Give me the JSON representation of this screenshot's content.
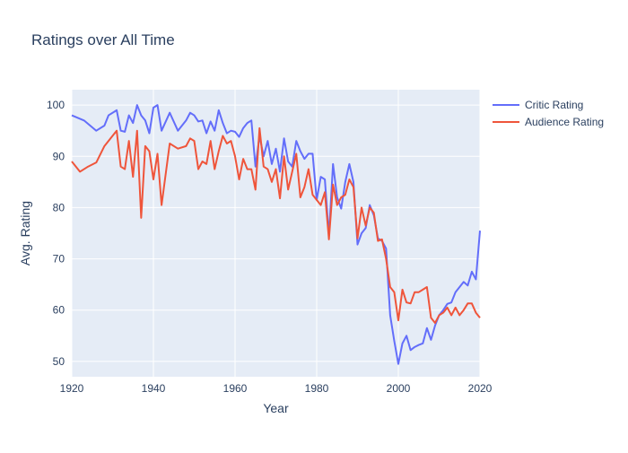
{
  "chart_data": {
    "type": "line",
    "title": "Ratings over All Time",
    "xlabel": "Year",
    "ylabel": "Avg. Rating",
    "xlim": [
      1920,
      2020
    ],
    "ylim": [
      47,
      103
    ],
    "x_ticks": [
      1920,
      1940,
      1960,
      1980,
      2000,
      2020
    ],
    "y_ticks": [
      50,
      60,
      70,
      80,
      90,
      100
    ],
    "grid": true,
    "legend_placement": "top-right",
    "colors": {
      "plot_bg": "#e5ecf6",
      "grid": "#ffffff",
      "text": "#2a3f5f"
    },
    "series": [
      {
        "name": "Critic Rating",
        "color": "#636efa",
        "points": [
          [
            1920,
            98.0
          ],
          [
            1923,
            97.0
          ],
          [
            1926,
            95.0
          ],
          [
            1928,
            96.0
          ],
          [
            1929,
            98.0
          ],
          [
            1931,
            99.0
          ],
          [
            1932,
            95.0
          ],
          [
            1933,
            94.8
          ],
          [
            1934,
            98.0
          ],
          [
            1935,
            96.5
          ],
          [
            1936,
            100.0
          ],
          [
            1937,
            98.0
          ],
          [
            1938,
            97.0
          ],
          [
            1939,
            94.5
          ],
          [
            1940,
            99.5
          ],
          [
            1941,
            100.0
          ],
          [
            1942,
            95.0
          ],
          [
            1944,
            98.5
          ],
          [
            1946,
            95.0
          ],
          [
            1948,
            97.0
          ],
          [
            1949,
            98.5
          ],
          [
            1950,
            98.0
          ],
          [
            1951,
            96.8
          ],
          [
            1952,
            97.0
          ],
          [
            1953,
            94.5
          ],
          [
            1954,
            96.8
          ],
          [
            1955,
            95.0
          ],
          [
            1956,
            99.0
          ],
          [
            1957,
            96.5
          ],
          [
            1958,
            94.5
          ],
          [
            1959,
            95.0
          ],
          [
            1960,
            94.8
          ],
          [
            1961,
            93.8
          ],
          [
            1962,
            95.5
          ],
          [
            1963,
            96.5
          ],
          [
            1964,
            97.0
          ],
          [
            1965,
            88.0
          ],
          [
            1966,
            94.0
          ],
          [
            1967,
            90.0
          ],
          [
            1968,
            93.0
          ],
          [
            1969,
            88.5
          ],
          [
            1970,
            91.5
          ],
          [
            1971,
            87.0
          ],
          [
            1972,
            93.5
          ],
          [
            1973,
            89.0
          ],
          [
            1974,
            88.0
          ],
          [
            1975,
            93.0
          ],
          [
            1976,
            91.0
          ],
          [
            1977,
            89.5
          ],
          [
            1978,
            90.5
          ],
          [
            1979,
            90.5
          ],
          [
            1980,
            81.5
          ],
          [
            1981,
            86.0
          ],
          [
            1982,
            85.5
          ],
          [
            1983,
            74.5
          ],
          [
            1984,
            88.5
          ],
          [
            1985,
            82.0
          ],
          [
            1986,
            79.8
          ],
          [
            1987,
            85.0
          ],
          [
            1988,
            88.5
          ],
          [
            1989,
            85.0
          ],
          [
            1990,
            72.8
          ],
          [
            1991,
            75.0
          ],
          [
            1992,
            76.0
          ],
          [
            1993,
            80.5
          ],
          [
            1994,
            78.5
          ],
          [
            1995,
            74.0
          ],
          [
            1996,
            73.5
          ],
          [
            1997,
            72.0
          ],
          [
            1998,
            59.0
          ],
          [
            1999,
            54.0
          ],
          [
            2000,
            49.5
          ],
          [
            2001,
            53.5
          ],
          [
            2002,
            55.0
          ],
          [
            2003,
            52.2
          ],
          [
            2004,
            52.8
          ],
          [
            2005,
            53.2
          ],
          [
            2006,
            53.5
          ],
          [
            2007,
            56.5
          ],
          [
            2008,
            54.2
          ],
          [
            2009,
            57.0
          ],
          [
            2010,
            59.0
          ],
          [
            2011,
            60.0
          ],
          [
            2012,
            61.2
          ],
          [
            2013,
            61.5
          ],
          [
            2014,
            63.5
          ],
          [
            2015,
            64.5
          ],
          [
            2016,
            65.5
          ],
          [
            2017,
            64.8
          ],
          [
            2018,
            67.5
          ],
          [
            2019,
            66.0
          ],
          [
            2020,
            75.5
          ]
        ]
      },
      {
        "name": "Audience Rating",
        "color": "#ef553b",
        "points": [
          [
            1920,
            89.0
          ],
          [
            1922,
            87.0
          ],
          [
            1924,
            88.0
          ],
          [
            1926,
            88.8
          ],
          [
            1928,
            92.0
          ],
          [
            1931,
            95.0
          ],
          [
            1932,
            88.0
          ],
          [
            1933,
            87.5
          ],
          [
            1934,
            93.0
          ],
          [
            1935,
            86.0
          ],
          [
            1936,
            95.0
          ],
          [
            1937,
            78.0
          ],
          [
            1938,
            92.0
          ],
          [
            1939,
            91.0
          ],
          [
            1940,
            85.5
          ],
          [
            1941,
            90.5
          ],
          [
            1942,
            80.5
          ],
          [
            1944,
            92.5
          ],
          [
            1946,
            91.5
          ],
          [
            1948,
            92.0
          ],
          [
            1949,
            93.5
          ],
          [
            1950,
            93.0
          ],
          [
            1951,
            87.5
          ],
          [
            1952,
            89.0
          ],
          [
            1953,
            88.5
          ],
          [
            1954,
            93.0
          ],
          [
            1955,
            87.5
          ],
          [
            1956,
            91.0
          ],
          [
            1957,
            94.0
          ],
          [
            1958,
            92.5
          ],
          [
            1959,
            93.0
          ],
          [
            1960,
            90.0
          ],
          [
            1961,
            85.5
          ],
          [
            1962,
            89.5
          ],
          [
            1963,
            87.5
          ],
          [
            1964,
            87.5
          ],
          [
            1965,
            83.5
          ],
          [
            1966,
            95.5
          ],
          [
            1967,
            88.0
          ],
          [
            1968,
            87.5
          ],
          [
            1969,
            85.0
          ],
          [
            1970,
            87.5
          ],
          [
            1971,
            81.8
          ],
          [
            1972,
            90.0
          ],
          [
            1973,
            83.5
          ],
          [
            1974,
            87.0
          ],
          [
            1975,
            90.5
          ],
          [
            1976,
            82.0
          ],
          [
            1977,
            84.0
          ],
          [
            1978,
            87.5
          ],
          [
            1979,
            82.5
          ],
          [
            1980,
            81.5
          ],
          [
            1981,
            80.5
          ],
          [
            1982,
            83.0
          ],
          [
            1983,
            73.8
          ],
          [
            1984,
            84.5
          ],
          [
            1985,
            80.5
          ],
          [
            1986,
            82.0
          ],
          [
            1987,
            82.5
          ],
          [
            1988,
            85.5
          ],
          [
            1989,
            84.0
          ],
          [
            1990,
            74.0
          ],
          [
            1991,
            80.0
          ],
          [
            1992,
            76.5
          ],
          [
            1993,
            80.0
          ],
          [
            1994,
            79.0
          ],
          [
            1995,
            73.5
          ],
          [
            1996,
            73.8
          ],
          [
            1997,
            70.0
          ],
          [
            1998,
            64.5
          ],
          [
            1999,
            63.5
          ],
          [
            2000,
            58.0
          ],
          [
            2001,
            64.0
          ],
          [
            2002,
            61.5
          ],
          [
            2003,
            61.3
          ],
          [
            2004,
            63.5
          ],
          [
            2005,
            63.5
          ],
          [
            2006,
            64.0
          ],
          [
            2007,
            64.5
          ],
          [
            2008,
            58.5
          ],
          [
            2009,
            57.5
          ],
          [
            2010,
            59.0
          ],
          [
            2011,
            59.5
          ],
          [
            2012,
            60.5
          ],
          [
            2013,
            59.0
          ],
          [
            2014,
            60.5
          ],
          [
            2015,
            59.0
          ],
          [
            2016,
            60.0
          ],
          [
            2017,
            61.3
          ],
          [
            2018,
            61.3
          ],
          [
            2019,
            59.5
          ],
          [
            2020,
            58.5
          ]
        ]
      }
    ]
  }
}
